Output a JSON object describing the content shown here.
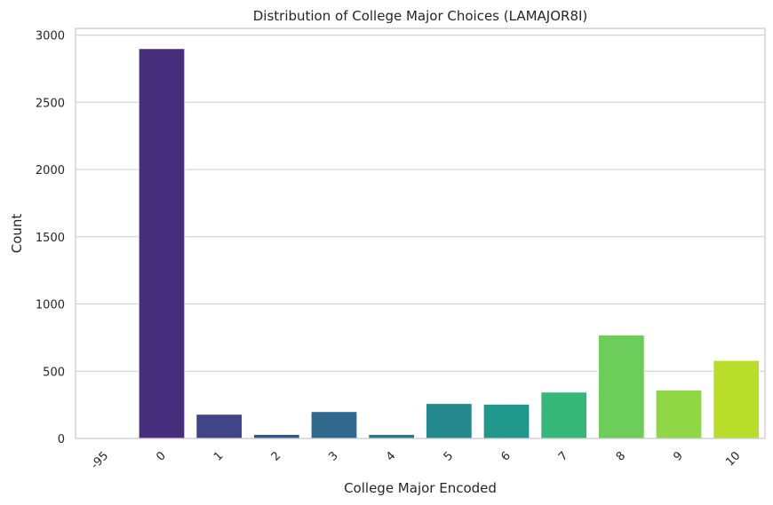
{
  "chart_data": {
    "type": "bar",
    "title": "Distribution of College Major Choices (LAMAJOR8I)",
    "xlabel": "College Major Encoded",
    "ylabel": "Count",
    "categories": [
      "-95",
      "0",
      "1",
      "2",
      "3",
      "4",
      "5",
      "6",
      "7",
      "8",
      "9",
      "10"
    ],
    "values": [
      2,
      2900,
      180,
      30,
      200,
      30,
      260,
      255,
      345,
      770,
      360,
      580
    ],
    "colors": [
      "#482475",
      "#472f7d",
      "#414487",
      "#39558c",
      "#31688e",
      "#2a788e",
      "#23898e",
      "#1f988b",
      "#35b779",
      "#6ccd5a",
      "#8fd744",
      "#b8de29"
    ],
    "ylim": [
      0,
      3050
    ],
    "yticks": [
      0,
      500,
      1000,
      1500,
      2000,
      2500,
      3000
    ],
    "grid": true,
    "legend": "none",
    "xtick_rotation": 45
  }
}
